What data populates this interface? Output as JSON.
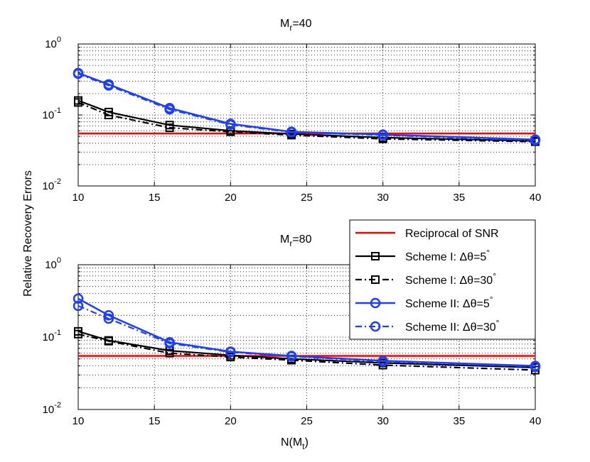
{
  "chart_data": [
    {
      "type": "line",
      "title_main": "M",
      "title_sub": "r",
      "title_value": "=40",
      "xlabel": "",
      "ylabel": "Relative Recovery Errors",
      "xlim": [
        10,
        40
      ],
      "ylim": [
        0.01,
        1
      ],
      "yscale": "log",
      "x_ticks": [
        "10",
        "15",
        "20",
        "25",
        "30",
        "35",
        "40"
      ],
      "y_ticks": [
        {
          "base": "10",
          "exp": "0"
        },
        {
          "base": "10",
          "exp": "-1"
        },
        {
          "base": "10",
          "exp": "-2"
        }
      ],
      "grid": true,
      "x": [
        10,
        12,
        16,
        20,
        24,
        30,
        40
      ],
      "series": [
        {
          "name": "Reciprocal of SNR",
          "x": [
            10,
            40
          ],
          "values": [
            0.055,
            0.055
          ]
        },
        {
          "name": "Scheme I: Δθ=5°",
          "values": [
            0.16,
            0.11,
            0.072,
            0.06,
            0.054,
            0.048,
            0.043
          ]
        },
        {
          "name": "Scheme I: Δθ=30°",
          "values": [
            0.15,
            0.1,
            0.066,
            0.058,
            0.052,
            0.046,
            0.042
          ]
        },
        {
          "name": "Scheme II: Δθ=5°",
          "values": [
            0.39,
            0.27,
            0.125,
            0.075,
            0.058,
            0.053,
            0.045
          ]
        },
        {
          "name": "Scheme II: Δθ=30°",
          "values": [
            0.38,
            0.26,
            0.12,
            0.073,
            0.057,
            0.052,
            0.044
          ]
        }
      ]
    },
    {
      "type": "line",
      "title_main": "M",
      "title_sub": "r",
      "title_value": "=80",
      "xlabel_main": "N(M",
      "xlabel_sub": "t",
      "xlabel_end": ")",
      "ylabel": "Relative Recovery Errors",
      "xlim": [
        10,
        40
      ],
      "ylim": [
        0.01,
        1
      ],
      "yscale": "log",
      "x_ticks": [
        "10",
        "15",
        "20",
        "25",
        "30",
        "35",
        "40"
      ],
      "y_ticks": [
        {
          "base": "10",
          "exp": "0"
        },
        {
          "base": "10",
          "exp": "-1"
        },
        {
          "base": "10",
          "exp": "-2"
        }
      ],
      "grid": true,
      "x": [
        10,
        12,
        16,
        20,
        24,
        30,
        40
      ],
      "series": [
        {
          "name": "Reciprocal of SNR",
          "x": [
            10,
            40
          ],
          "values": [
            0.055,
            0.055
          ]
        },
        {
          "name": "Scheme I: Δθ=5°",
          "values": [
            0.12,
            0.09,
            0.065,
            0.056,
            0.05,
            0.044,
            0.038
          ]
        },
        {
          "name": "Scheme I: Δθ=30°",
          "values": [
            0.11,
            0.088,
            0.06,
            0.053,
            0.048,
            0.041,
            0.035
          ]
        },
        {
          "name": "Scheme II: Δθ=5°",
          "values": [
            0.34,
            0.2,
            0.085,
            0.063,
            0.055,
            0.047,
            0.04
          ]
        },
        {
          "name": "Scheme II: Δθ=30°",
          "values": [
            0.27,
            0.18,
            0.082,
            0.062,
            0.054,
            0.046,
            0.039
          ]
        }
      ]
    }
  ],
  "legend": {
    "placement": "right, between panels",
    "entries": [
      {
        "label": "Reciprocal of SNR",
        "color": "#ff0000",
        "style": "solid",
        "marker": "none"
      },
      {
        "label": "Scheme I: Δθ=5",
        "deg": "°",
        "color": "#000000",
        "style": "solid",
        "marker": "square"
      },
      {
        "label": "Scheme I: Δθ=30",
        "deg": "°",
        "color": "#000000",
        "style": "dashdot",
        "marker": "square"
      },
      {
        "label": "Scheme II: Δθ=5",
        "deg": "°",
        "color": "#1f3fff",
        "style": "solid",
        "marker": "circle"
      },
      {
        "label": "Scheme II: Δθ=30",
        "deg": "°",
        "color": "#1f3fff",
        "style": "dashdot",
        "marker": "circle"
      }
    ]
  },
  "colors": {
    "snr": "#ff0000",
    "scheme1": "#000000",
    "scheme2": "#1f3fff"
  }
}
